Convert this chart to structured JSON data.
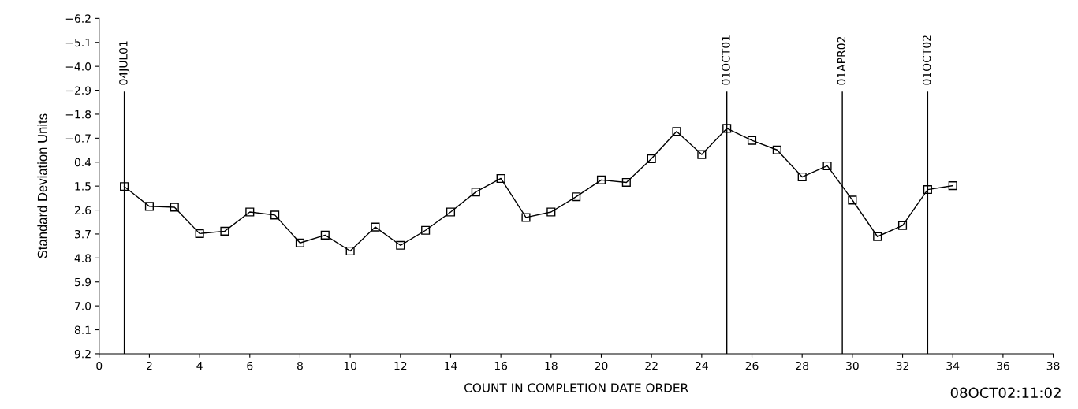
{
  "chart_data": {
    "type": "line",
    "xlabel": "COUNT IN COMPLETION DATE ORDER",
    "ylabel": "Standard Deviation Units",
    "x": [
      1,
      2,
      3,
      4,
      5,
      6,
      7,
      8,
      9,
      10,
      11,
      12,
      13,
      14,
      15,
      16,
      17,
      18,
      19,
      20,
      21,
      22,
      23,
      24,
      25,
      26,
      27,
      28,
      29,
      30,
      31,
      32,
      33,
      34
    ],
    "series": [
      {
        "color": "#000000",
        "values": [
          1.52,
          2.43,
          2.47,
          3.68,
          3.57,
          2.69,
          2.83,
          4.11,
          3.75,
          4.48,
          3.38,
          4.22,
          3.53,
          2.69,
          1.77,
          1.15,
          2.94,
          2.69,
          1.99,
          1.22,
          1.33,
          0.24,
          -1.01,
          0.05,
          -1.15,
          -0.6,
          -0.16,
          1.08,
          0.57,
          2.14,
          3.82,
          3.31,
          1.66,
          1.48
        ]
      }
    ],
    "marker": "square",
    "line_style": "solid",
    "xlim": [
      0,
      38
    ],
    "xticks": [
      0,
      2,
      4,
      6,
      8,
      10,
      12,
      14,
      16,
      18,
      20,
      22,
      24,
      26,
      28,
      30,
      32,
      34,
      36,
      38
    ],
    "ylim": [
      9.2,
      -6.2
    ],
    "yticks": [
      {
        "value": -6.2,
        "label": "−6.2"
      },
      {
        "value": -5.1,
        "label": "−5.1"
      },
      {
        "value": -4.0,
        "label": "−4.0"
      },
      {
        "value": -2.9,
        "label": "−2.9"
      },
      {
        "value": -1.8,
        "label": "−1.8"
      },
      {
        "value": -0.7,
        "label": "−0.7"
      },
      {
        "value": 0.4,
        "label": "0.4"
      },
      {
        "value": 1.5,
        "label": "1.5"
      },
      {
        "value": 2.6,
        "label": "2.6"
      },
      {
        "value": 3.7,
        "label": "3.7"
      },
      {
        "value": 4.8,
        "label": "4.8"
      },
      {
        "value": 5.9,
        "label": "5.9"
      },
      {
        "value": 7.0,
        "label": "7.0"
      },
      {
        "value": 8.1,
        "label": "8.1"
      },
      {
        "value": 9.2,
        "label": "9.2"
      }
    ],
    "ref_lines": [
      {
        "axis": "x",
        "value": 1,
        "label": "04JUL01"
      },
      {
        "axis": "x",
        "value": 25,
        "label": "01OCT01"
      },
      {
        "axis": "x",
        "value": 29.6,
        "label": "01APR02"
      },
      {
        "axis": "x",
        "value": 33,
        "label": "01OCT02"
      }
    ],
    "annotations": [
      "08OCT02:11:02"
    ],
    "grid": false,
    "legend": false
  }
}
